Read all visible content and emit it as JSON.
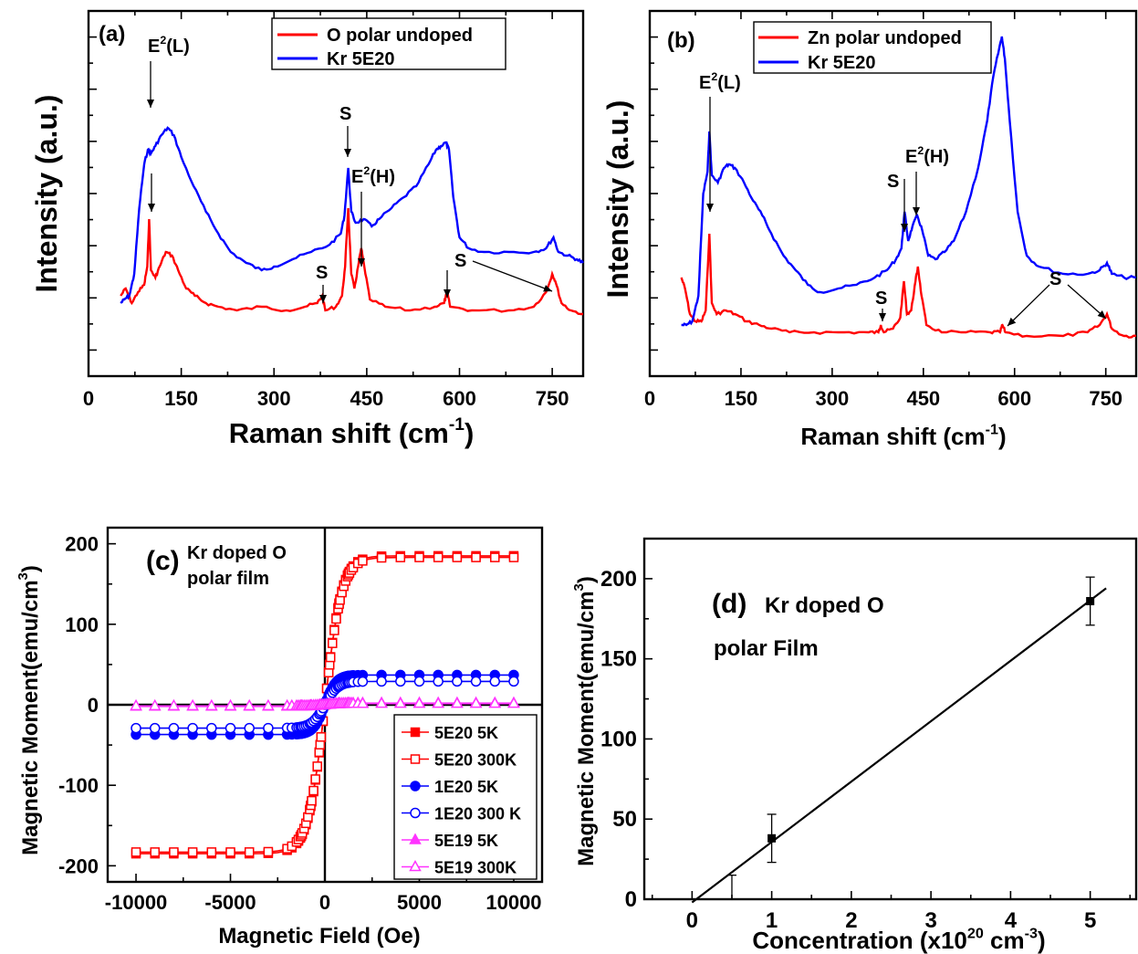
{
  "chart_data": [
    {
      "panel": "(a)",
      "type": "line",
      "xlabel": "Raman shift (cm",
      "xlabel_sup": "-1",
      "xlabel_end": ")",
      "ylabel": "Intensity (a.u.)",
      "xlim": [
        0,
        800
      ],
      "ylim": [
        0,
        1
      ],
      "x_ticks": [
        0,
        150,
        300,
        450,
        600,
        750
      ],
      "y_tick_labels": "none",
      "legend": "top-right",
      "series": [
        {
          "name": "O polar undoped",
          "color": "#ff0000",
          "points": [
            [
              52,
              0.22
            ],
            [
              60,
              0.24
            ],
            [
              70,
              0.2
            ],
            [
              80,
              0.23
            ],
            [
              90,
              0.25
            ],
            [
              95,
              0.3
            ],
            [
              98,
              0.43
            ],
            [
              101,
              0.29
            ],
            [
              108,
              0.27
            ],
            [
              115,
              0.3
            ],
            [
              125,
              0.34
            ],
            [
              135,
              0.33
            ],
            [
              145,
              0.29
            ],
            [
              158,
              0.24
            ],
            [
              172,
              0.22
            ],
            [
              190,
              0.2
            ],
            [
              210,
              0.19
            ],
            [
              240,
              0.18
            ],
            [
              280,
              0.19
            ],
            [
              320,
              0.18
            ],
            [
              350,
              0.19
            ],
            [
              370,
              0.2
            ],
            [
              378,
              0.22
            ],
            [
              383,
              0.18
            ],
            [
              400,
              0.19
            ],
            [
              410,
              0.22
            ],
            [
              415,
              0.3
            ],
            [
              420,
              0.46
            ],
            [
              425,
              0.28
            ],
            [
              430,
              0.24
            ],
            [
              436,
              0.3
            ],
            [
              441,
              0.35
            ],
            [
              446,
              0.3
            ],
            [
              455,
              0.21
            ],
            [
              480,
              0.19
            ],
            [
              520,
              0.18
            ],
            [
              560,
              0.19
            ],
            [
              575,
              0.2
            ],
            [
              580,
              0.23
            ],
            [
              585,
              0.19
            ],
            [
              620,
              0.18
            ],
            [
              680,
              0.18
            ],
            [
              720,
              0.19
            ],
            [
              740,
              0.23
            ],
            [
              750,
              0.28
            ],
            [
              755,
              0.26
            ],
            [
              765,
              0.2
            ],
            [
              780,
              0.18
            ],
            [
              800,
              0.17
            ]
          ]
        },
        {
          "name": "Kr 5E20",
          "color": "#0000ff",
          "points": [
            [
              52,
              0.2
            ],
            [
              58,
              0.21
            ],
            [
              66,
              0.22
            ],
            [
              74,
              0.28
            ],
            [
              82,
              0.46
            ],
            [
              90,
              0.58
            ],
            [
              96,
              0.62
            ],
            [
              101,
              0.61
            ],
            [
              108,
              0.63
            ],
            [
              118,
              0.66
            ],
            [
              128,
              0.68
            ],
            [
              138,
              0.66
            ],
            [
              150,
              0.6
            ],
            [
              170,
              0.52
            ],
            [
              190,
              0.45
            ],
            [
              210,
              0.39
            ],
            [
              230,
              0.34
            ],
            [
              255,
              0.31
            ],
            [
              280,
              0.29
            ],
            [
              300,
              0.3
            ],
            [
              330,
              0.32
            ],
            [
              360,
              0.34
            ],
            [
              390,
              0.36
            ],
            [
              408,
              0.39
            ],
            [
              414,
              0.44
            ],
            [
              420,
              0.57
            ],
            [
              425,
              0.45
            ],
            [
              432,
              0.42
            ],
            [
              445,
              0.43
            ],
            [
              458,
              0.41
            ],
            [
              470,
              0.43
            ],
            [
              490,
              0.46
            ],
            [
              510,
              0.49
            ],
            [
              530,
              0.52
            ],
            [
              550,
              0.58
            ],
            [
              562,
              0.62
            ],
            [
              570,
              0.63
            ],
            [
              578,
              0.64
            ],
            [
              583,
              0.62
            ],
            [
              590,
              0.49
            ],
            [
              600,
              0.38
            ],
            [
              615,
              0.35
            ],
            [
              640,
              0.34
            ],
            [
              680,
              0.34
            ],
            [
              720,
              0.34
            ],
            [
              740,
              0.35
            ],
            [
              752,
              0.38
            ],
            [
              760,
              0.34
            ],
            [
              775,
              0.33
            ],
            [
              790,
              0.32
            ],
            [
              800,
              0.31
            ]
          ]
        }
      ],
      "annotations": [
        "E2(L)",
        "S",
        "E2(H)",
        "S",
        "S",
        "S"
      ]
    },
    {
      "panel": "(b)",
      "type": "line",
      "xlabel": "Raman shift (cm",
      "xlabel_sup": "-1",
      "xlabel_end": ")",
      "ylabel": "Intensity (a.u.)",
      "xlim": [
        0,
        800
      ],
      "ylim": [
        0,
        1
      ],
      "x_ticks": [
        0,
        150,
        300,
        450,
        600,
        750
      ],
      "y_tick_labels": "none",
      "legend": "top-right",
      "series": [
        {
          "name": "Zn polar undoped",
          "color": "#ff0000",
          "points": [
            [
              52,
              0.27
            ],
            [
              58,
              0.24
            ],
            [
              66,
              0.17
            ],
            [
              75,
              0.15
            ],
            [
              85,
              0.15
            ],
            [
              92,
              0.18
            ],
            [
              98,
              0.39
            ],
            [
              102,
              0.2
            ],
            [
              110,
              0.17
            ],
            [
              125,
              0.18
            ],
            [
              140,
              0.17
            ],
            [
              160,
              0.15
            ],
            [
              180,
              0.14
            ],
            [
              200,
              0.13
            ],
            [
              230,
              0.12
            ],
            [
              270,
              0.12
            ],
            [
              320,
              0.12
            ],
            [
              360,
              0.12
            ],
            [
              376,
              0.12
            ],
            [
              380,
              0.14
            ],
            [
              385,
              0.12
            ],
            [
              400,
              0.13
            ],
            [
              412,
              0.16
            ],
            [
              418,
              0.26
            ],
            [
              423,
              0.17
            ],
            [
              430,
              0.18
            ],
            [
              437,
              0.26
            ],
            [
              441,
              0.3
            ],
            [
              447,
              0.22
            ],
            [
              455,
              0.14
            ],
            [
              480,
              0.12
            ],
            [
              520,
              0.12
            ],
            [
              560,
              0.12
            ],
            [
              576,
              0.12
            ],
            [
              580,
              0.14
            ],
            [
              585,
              0.12
            ],
            [
              620,
              0.11
            ],
            [
              680,
              0.11
            ],
            [
              720,
              0.12
            ],
            [
              740,
              0.14
            ],
            [
              752,
              0.17
            ],
            [
              760,
              0.13
            ],
            [
              780,
              0.11
            ],
            [
              800,
              0.11
            ]
          ]
        },
        {
          "name": "Kr 5E20",
          "color": "#0000ff",
          "points": [
            [
              52,
              0.14
            ],
            [
              60,
              0.14
            ],
            [
              70,
              0.15
            ],
            [
              80,
              0.22
            ],
            [
              88,
              0.5
            ],
            [
              95,
              0.56
            ],
            [
              98,
              0.67
            ],
            [
              102,
              0.55
            ],
            [
              112,
              0.53
            ],
            [
              122,
              0.57
            ],
            [
              130,
              0.58
            ],
            [
              140,
              0.57
            ],
            [
              155,
              0.53
            ],
            [
              170,
              0.48
            ],
            [
              185,
              0.44
            ],
            [
              200,
              0.39
            ],
            [
              220,
              0.33
            ],
            [
              240,
              0.29
            ],
            [
              260,
              0.25
            ],
            [
              280,
              0.23
            ],
            [
              310,
              0.24
            ],
            [
              340,
              0.25
            ],
            [
              370,
              0.27
            ],
            [
              390,
              0.29
            ],
            [
              405,
              0.32
            ],
            [
              414,
              0.35
            ],
            [
              419,
              0.45
            ],
            [
              425,
              0.37
            ],
            [
              432,
              0.41
            ],
            [
              440,
              0.44
            ],
            [
              448,
              0.4
            ],
            [
              458,
              0.33
            ],
            [
              470,
              0.32
            ],
            [
              485,
              0.34
            ],
            [
              500,
              0.37
            ],
            [
              520,
              0.45
            ],
            [
              540,
              0.57
            ],
            [
              555,
              0.7
            ],
            [
              565,
              0.82
            ],
            [
              575,
              0.9
            ],
            [
              579,
              0.93
            ],
            [
              584,
              0.87
            ],
            [
              592,
              0.7
            ],
            [
              605,
              0.45
            ],
            [
              620,
              0.33
            ],
            [
              640,
              0.3
            ],
            [
              680,
              0.28
            ],
            [
              720,
              0.28
            ],
            [
              740,
              0.29
            ],
            [
              752,
              0.31
            ],
            [
              760,
              0.28
            ],
            [
              780,
              0.27
            ],
            [
              800,
              0.27
            ]
          ]
        }
      ],
      "annotations": [
        "E2(L)",
        "S",
        "E2(H)",
        "S",
        "S"
      ]
    },
    {
      "panel": "(c)",
      "type": "line",
      "xlabel": "Magnetic Field (Oe)",
      "ylabel": "Magnetic Moment(emu/cm",
      "ylabel_sup": "3",
      "ylabel_end": ")",
      "xlim": [
        -11500,
        11500
      ],
      "ylim": [
        -220,
        220
      ],
      "x_ticks": [
        -10000,
        -5000,
        0,
        5000,
        10000
      ],
      "y_ticks": [
        -200,
        -100,
        0,
        100,
        200
      ],
      "inset_title": [
        "Kr doped O",
        "polar film"
      ],
      "legend": "bottom-right",
      "series": [
        {
          "name": "5E20 5K",
          "color": "#ff0000",
          "marker": "square-filled",
          "Ms": 185
        },
        {
          "name": "5E20 300K",
          "color": "#ff0000",
          "marker": "square-open",
          "Ms": 183
        },
        {
          "name": "1E20 5K",
          "color": "#0000ff",
          "marker": "circle-filled",
          "Ms": 37
        },
        {
          "name": "1E20 300 K",
          "color": "#0000ff",
          "marker": "circle-open",
          "Ms": 29
        },
        {
          "name": "5E19 5K",
          "color": "#ff33ff",
          "marker": "triangle-filled",
          "Ms": 2
        },
        {
          "name": "5E19 300K",
          "color": "#ff33ff",
          "marker": "triangle-open",
          "Ms": 1.5
        }
      ]
    },
    {
      "panel": "(d)",
      "type": "scatter",
      "xlabel": "Concentration (x10",
      "xlabel_sup": "20",
      "xlabel_mid": " cm",
      "xlabel_sup2": "-3",
      "xlabel_end": ")",
      "ylabel": "Magnetic Moment(emu/cm",
      "ylabel_sup": "3",
      "ylabel_end": ")",
      "xlim": [
        -0.6,
        5.6
      ],
      "ylim": [
        0,
        225
      ],
      "x_ticks": [
        0,
        1,
        2,
        3,
        4,
        5
      ],
      "y_ticks": [
        0,
        50,
        100,
        150,
        200
      ],
      "inset_title": [
        "(d)",
        "Kr doped O",
        "polar  Film"
      ],
      "points": [
        {
          "x": 0.5,
          "y": 0,
          "err": 15
        },
        {
          "x": 1,
          "y": 38,
          "err": 15
        },
        {
          "x": 5,
          "y": 186,
          "err": 15
        }
      ],
      "fit_line": [
        [
          0,
          -2
        ],
        [
          5.2,
          194
        ]
      ]
    }
  ]
}
